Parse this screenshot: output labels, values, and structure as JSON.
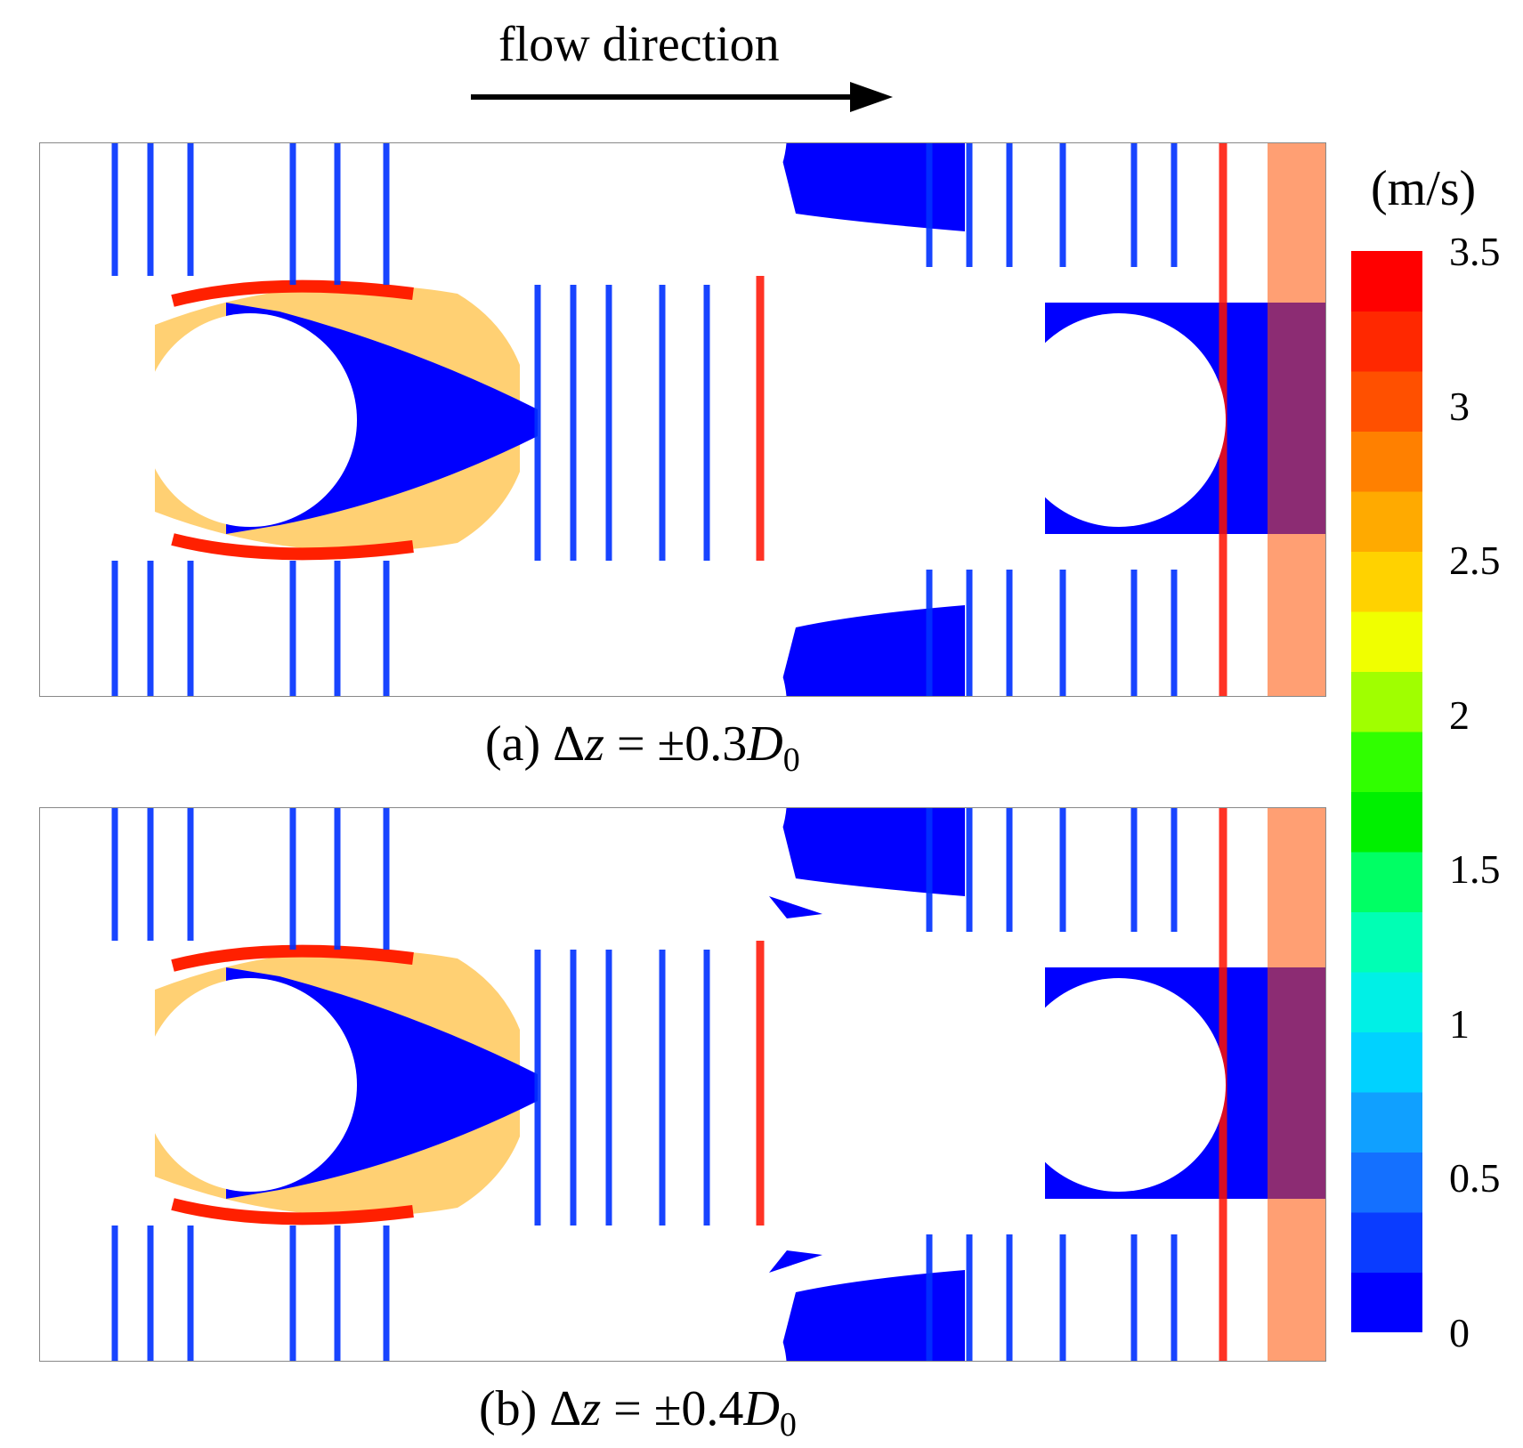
{
  "header": {
    "flow_label": "flow direction"
  },
  "panels": [
    {
      "caption_prefix": "(a) Δ",
      "caption_var": "z",
      "caption_mid": " = ±0.3",
      "caption_D": "D",
      "caption_sub": "0"
    },
    {
      "caption_prefix": "(b) Δ",
      "caption_var": "z",
      "caption_mid": " = ±0.4",
      "caption_D": "D",
      "caption_sub": "0"
    }
  ],
  "colorbar": {
    "unit": "(m/s)",
    "ticks": [
      "3.5",
      "3",
      "2.5",
      "2",
      "1.5",
      "1",
      "0.5",
      "0"
    ],
    "colors": [
      "#0000ff",
      "#0a3cff",
      "#1470ff",
      "#10a0ff",
      "#00d2ff",
      "#00f0e6",
      "#00ffb4",
      "#00ff64",
      "#00f000",
      "#30ff00",
      "#a0ff00",
      "#f0ff00",
      "#ffd200",
      "#ffaa00",
      "#ff8000",
      "#ff5000",
      "#ff2800",
      "#ff0000"
    ]
  }
}
